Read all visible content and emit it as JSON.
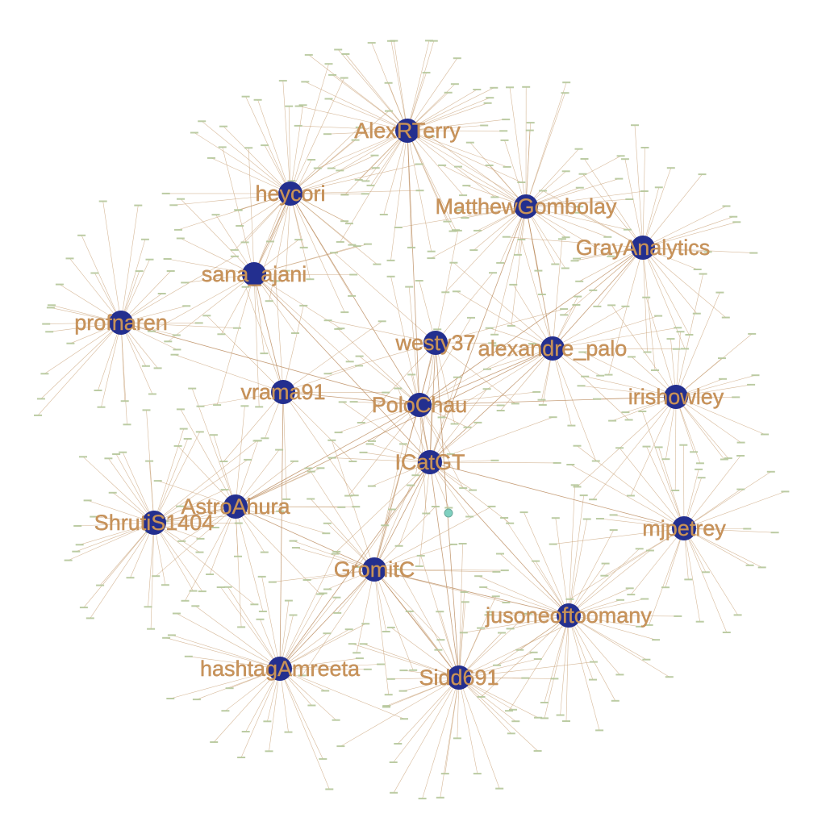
{
  "hubs": [
    {
      "id": "AlexRTerry",
      "label": "AlexRTerry",
      "size": 1.0
    },
    {
      "id": "heycori",
      "label": "heycori",
      "size": 1.0
    },
    {
      "id": "MatthewGombolay",
      "label": "MatthewGombolay",
      "size": 1.0
    },
    {
      "id": "GrayAnalytics",
      "label": "GrayAnalytics",
      "size": 1.0
    },
    {
      "id": "sana_ajani",
      "label": "sana_ajani",
      "size": 1.0
    },
    {
      "id": "profnaren",
      "label": "profnaren",
      "size": 1.0
    },
    {
      "id": "westy37",
      "label": "westy37",
      "size": 1.0
    },
    {
      "id": "alexandre_palo",
      "label": "alexandre_palo",
      "size": 1.0
    },
    {
      "id": "vrama91",
      "label": "vrama91",
      "size": 1.0
    },
    {
      "id": "PoloChau",
      "label": "PoloChau",
      "size": 1.0
    },
    {
      "id": "irishowley",
      "label": "irishowley",
      "size": 1.0
    },
    {
      "id": "ICatGT",
      "label": "ICatGT",
      "size": 1.0
    },
    {
      "id": "AstroAhura",
      "label": "AstroAhura",
      "size": 1.0
    },
    {
      "id": "ShrutiS1404",
      "label": "ShrutiS1404",
      "size": 1.0
    },
    {
      "id": "mjpetrey",
      "label": "mjpetrey",
      "size": 1.0
    },
    {
      "id": "GromitC",
      "label": "GromitC",
      "size": 1.0
    },
    {
      "id": "jusoneoftoomany",
      "label": "jusoneoftoomany",
      "size": 1.0
    },
    {
      "id": "hashtagAmreeta",
      "label": "hashtagAmreeta",
      "size": 1.0
    },
    {
      "id": "Sidd691",
      "label": "Sidd691",
      "size": 1.0
    }
  ],
  "hub_links": [
    [
      "AlexRTerry",
      "PoloChau"
    ],
    [
      "heycori",
      "sana_ajani"
    ],
    [
      "heycori",
      "PoloChau"
    ],
    [
      "sana_ajani",
      "vrama91"
    ],
    [
      "sana_ajani",
      "ICatGT"
    ],
    [
      "profnaren",
      "PoloChau"
    ],
    [
      "MatthewGombolay",
      "ICatGT"
    ],
    [
      "MatthewGombolay",
      "alexandre_palo"
    ],
    [
      "GrayAnalytics",
      "alexandre_palo"
    ],
    [
      "GrayAnalytics",
      "PoloChau"
    ],
    [
      "westy37",
      "ICatGT"
    ],
    [
      "westy37",
      "GromitC"
    ],
    [
      "alexandre_palo",
      "PoloChau"
    ],
    [
      "alexandre_palo",
      "ICatGT"
    ],
    [
      "alexandre_palo",
      "AstroAhura"
    ],
    [
      "vrama91",
      "PoloChau"
    ],
    [
      "PoloChau",
      "ICatGT"
    ],
    [
      "PoloChau",
      "irishowley"
    ],
    [
      "PoloChau",
      "AstroAhura"
    ],
    [
      "ICatGT",
      "GromitC"
    ],
    [
      "ICatGT",
      "Sidd691"
    ],
    [
      "ICatGT",
      "jusoneoftoomany"
    ],
    [
      "ICatGT",
      "hashtagAmreeta"
    ],
    [
      "ICatGT",
      "mjpetrey"
    ],
    [
      "AstroAhura",
      "ShrutiS1404"
    ],
    [
      "AstroAhura",
      "GromitC"
    ],
    [
      "GromitC",
      "jusoneoftoomany"
    ],
    [
      "GromitC",
      "Sidd691"
    ],
    [
      "GromitC",
      "hashtagAmreeta"
    ],
    [
      "westy37",
      "Sidd691"
    ],
    [
      "vrama91",
      "hashtagAmreeta"
    ]
  ],
  "leaf_counts": {
    "AlexRTerry": 46,
    "heycori": 40,
    "MatthewGombolay": 40,
    "GrayAnalytics": 30,
    "sana_ajani": 22,
    "profnaren": 32,
    "westy37": 12,
    "alexandre_palo": 22,
    "vrama91": 14,
    "PoloChau": 18,
    "irishowley": 30,
    "ICatGT": 22,
    "AstroAhura": 26,
    "ShrutiS1404": 34,
    "mjpetrey": 30,
    "GromitC": 26,
    "jusoneoftoomany": 38,
    "hashtagAmreeta": 36,
    "Sidd691": 40
  },
  "colors": {
    "hub": "#232f8f",
    "label": "#c8935a",
    "edge": "#c9a278",
    "leaf": "#b5c79a",
    "small_node": "#7fd0c0"
  }
}
